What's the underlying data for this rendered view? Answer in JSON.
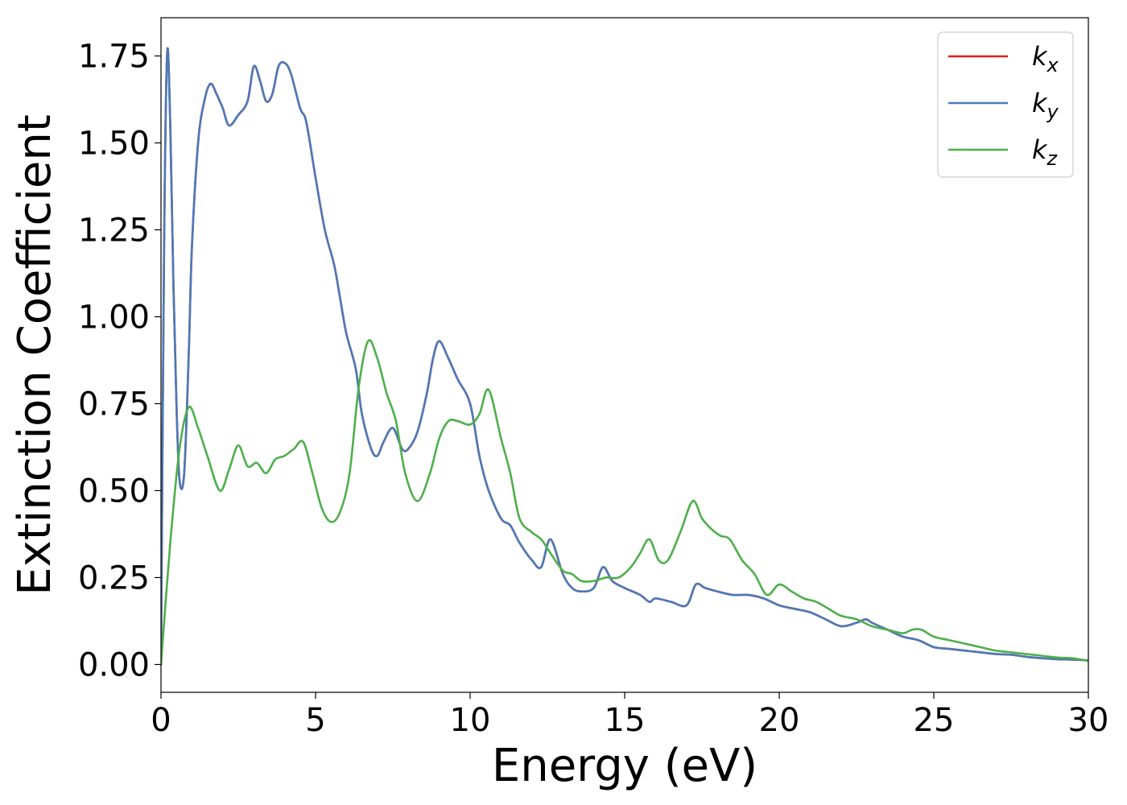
{
  "chart_data": {
    "type": "line",
    "title": "",
    "xlabel": "Energy (eV)",
    "ylabel": "Extinction Coefficient",
    "xlim": [
      0,
      30
    ],
    "ylim": [
      -0.08,
      1.86
    ],
    "xticks": [
      0,
      5,
      10,
      15,
      20,
      25,
      30
    ],
    "xtick_labels": [
      "0",
      "5",
      "10",
      "15",
      "20",
      "25",
      "30"
    ],
    "yticks": [
      0.0,
      0.25,
      0.5,
      0.75,
      1.0,
      1.25,
      1.5,
      1.75
    ],
    "ytick_labels": [
      "0.00",
      "0.25",
      "0.50",
      "0.75",
      "1.00",
      "1.25",
      "1.50",
      "1.75"
    ],
    "grid": false,
    "legend_position": "top-right",
    "series": [
      {
        "name": "k_x",
        "label_base": "k",
        "label_sub": "x",
        "color": "#e41a1c",
        "x": [
          0,
          0.1,
          0.2,
          0.3,
          0.4,
          0.5,
          0.6,
          0.75,
          0.9,
          1.0,
          1.2,
          1.4,
          1.6,
          1.8,
          1.9,
          2.0,
          2.2,
          2.5,
          2.8,
          3.0,
          3.2,
          3.4,
          3.6,
          3.8,
          4.0,
          4.2,
          4.5,
          4.7,
          5.0,
          5.3,
          5.6,
          5.8,
          6.0,
          6.3,
          6.5,
          6.8,
          7.0,
          7.2,
          7.5,
          7.8,
          8.0,
          8.3,
          8.6,
          8.8,
          9.0,
          9.3,
          9.6,
          10.0,
          10.3,
          10.6,
          11.0,
          11.3,
          11.6,
          12.0,
          12.3,
          12.6,
          13.0,
          13.3,
          13.6,
          14.0,
          14.3,
          14.6,
          15.0,
          15.5,
          15.8,
          16.0,
          16.5,
          17.0,
          17.3,
          17.6,
          18.0,
          18.5,
          19.0,
          19.5,
          20.0,
          20.5,
          21.0,
          21.5,
          22.0,
          22.5,
          22.8,
          23.0,
          23.5,
          24.0,
          24.5,
          25.0,
          25.5,
          26.0,
          26.5,
          27.0,
          27.5,
          28.0,
          28.5,
          29.0,
          29.5,
          30.0
        ],
        "y": [
          0.0,
          1.2,
          1.76,
          1.55,
          1.1,
          0.75,
          0.53,
          0.55,
          0.9,
          1.2,
          1.5,
          1.62,
          1.67,
          1.64,
          1.62,
          1.6,
          1.55,
          1.58,
          1.62,
          1.72,
          1.68,
          1.62,
          1.64,
          1.72,
          1.73,
          1.7,
          1.6,
          1.56,
          1.4,
          1.25,
          1.15,
          1.05,
          0.95,
          0.85,
          0.72,
          0.62,
          0.6,
          0.64,
          0.68,
          0.62,
          0.62,
          0.67,
          0.78,
          0.88,
          0.93,
          0.88,
          0.82,
          0.75,
          0.6,
          0.5,
          0.42,
          0.4,
          0.35,
          0.3,
          0.28,
          0.36,
          0.26,
          0.22,
          0.21,
          0.22,
          0.28,
          0.24,
          0.22,
          0.2,
          0.18,
          0.19,
          0.18,
          0.17,
          0.23,
          0.22,
          0.21,
          0.2,
          0.2,
          0.19,
          0.17,
          0.16,
          0.15,
          0.13,
          0.11,
          0.12,
          0.13,
          0.12,
          0.1,
          0.08,
          0.07,
          0.05,
          0.045,
          0.04,
          0.035,
          0.03,
          0.028,
          0.022,
          0.018,
          0.015,
          0.014,
          0.012
        ]
      },
      {
        "name": "k_y",
        "label_base": "k",
        "label_sub": "y",
        "color": "#4a7ab8",
        "x": [
          0,
          0.1,
          0.2,
          0.3,
          0.4,
          0.5,
          0.6,
          0.75,
          0.9,
          1.0,
          1.2,
          1.4,
          1.6,
          1.8,
          1.9,
          2.0,
          2.2,
          2.5,
          2.8,
          3.0,
          3.2,
          3.4,
          3.6,
          3.8,
          4.0,
          4.2,
          4.5,
          4.7,
          5.0,
          5.3,
          5.6,
          5.8,
          6.0,
          6.3,
          6.5,
          6.8,
          7.0,
          7.2,
          7.5,
          7.8,
          8.0,
          8.3,
          8.6,
          8.8,
          9.0,
          9.3,
          9.6,
          10.0,
          10.3,
          10.6,
          11.0,
          11.3,
          11.6,
          12.0,
          12.3,
          12.6,
          13.0,
          13.3,
          13.6,
          14.0,
          14.3,
          14.6,
          15.0,
          15.5,
          15.8,
          16.0,
          16.5,
          17.0,
          17.3,
          17.6,
          18.0,
          18.5,
          19.0,
          19.5,
          20.0,
          20.5,
          21.0,
          21.5,
          22.0,
          22.5,
          22.8,
          23.0,
          23.5,
          24.0,
          24.5,
          25.0,
          25.5,
          26.0,
          26.5,
          27.0,
          27.5,
          28.0,
          28.5,
          29.0,
          29.5,
          30.0
        ],
        "y": [
          0.0,
          1.2,
          1.76,
          1.55,
          1.1,
          0.75,
          0.53,
          0.55,
          0.9,
          1.2,
          1.5,
          1.62,
          1.67,
          1.64,
          1.62,
          1.6,
          1.55,
          1.58,
          1.62,
          1.72,
          1.68,
          1.62,
          1.64,
          1.72,
          1.73,
          1.7,
          1.6,
          1.56,
          1.4,
          1.25,
          1.15,
          1.05,
          0.95,
          0.85,
          0.72,
          0.62,
          0.6,
          0.64,
          0.68,
          0.62,
          0.62,
          0.67,
          0.78,
          0.88,
          0.93,
          0.88,
          0.82,
          0.75,
          0.6,
          0.5,
          0.42,
          0.4,
          0.35,
          0.3,
          0.28,
          0.36,
          0.26,
          0.22,
          0.21,
          0.22,
          0.28,
          0.24,
          0.22,
          0.2,
          0.18,
          0.19,
          0.18,
          0.17,
          0.23,
          0.22,
          0.21,
          0.2,
          0.2,
          0.19,
          0.17,
          0.16,
          0.15,
          0.13,
          0.11,
          0.12,
          0.13,
          0.12,
          0.1,
          0.08,
          0.07,
          0.05,
          0.045,
          0.04,
          0.035,
          0.03,
          0.028,
          0.022,
          0.018,
          0.015,
          0.014,
          0.012
        ]
      },
      {
        "name": "k_z",
        "label_base": "k",
        "label_sub": "z",
        "color": "#4daf4a",
        "x": [
          0,
          0.3,
          0.6,
          0.9,
          1.2,
          1.5,
          1.9,
          2.2,
          2.5,
          2.8,
          3.1,
          3.4,
          3.7,
          4.0,
          4.3,
          4.6,
          4.9,
          5.2,
          5.5,
          5.8,
          6.1,
          6.4,
          6.7,
          7.0,
          7.3,
          7.6,
          7.9,
          8.3,
          8.7,
          9.0,
          9.3,
          9.6,
          10.0,
          10.3,
          10.6,
          11.0,
          11.3,
          11.6,
          12.0,
          12.3,
          12.6,
          13.0,
          13.3,
          13.6,
          14.0,
          14.4,
          14.8,
          15.2,
          15.5,
          15.8,
          16.1,
          16.4,
          16.8,
          17.2,
          17.5,
          17.8,
          18.1,
          18.4,
          18.8,
          19.2,
          19.6,
          20.0,
          20.4,
          20.8,
          21.2,
          21.6,
          22.0,
          22.5,
          23.0,
          23.5,
          24.0,
          24.3,
          24.6,
          25.0,
          25.5,
          26.0,
          26.5,
          27.0,
          27.5,
          28.0,
          28.5,
          29.0,
          29.5,
          30.0
        ],
        "y": [
          0.0,
          0.35,
          0.62,
          0.74,
          0.68,
          0.6,
          0.5,
          0.56,
          0.63,
          0.57,
          0.58,
          0.55,
          0.59,
          0.6,
          0.62,
          0.64,
          0.55,
          0.45,
          0.41,
          0.44,
          0.55,
          0.8,
          0.93,
          0.88,
          0.78,
          0.7,
          0.55,
          0.47,
          0.55,
          0.65,
          0.7,
          0.7,
          0.69,
          0.72,
          0.79,
          0.65,
          0.55,
          0.42,
          0.38,
          0.36,
          0.32,
          0.27,
          0.26,
          0.24,
          0.24,
          0.25,
          0.25,
          0.28,
          0.32,
          0.36,
          0.3,
          0.3,
          0.38,
          0.47,
          0.42,
          0.39,
          0.37,
          0.36,
          0.3,
          0.26,
          0.2,
          0.23,
          0.21,
          0.19,
          0.18,
          0.16,
          0.14,
          0.13,
          0.11,
          0.1,
          0.09,
          0.1,
          0.1,
          0.08,
          0.07,
          0.06,
          0.05,
          0.04,
          0.035,
          0.03,
          0.025,
          0.02,
          0.018,
          0.01
        ]
      }
    ]
  }
}
